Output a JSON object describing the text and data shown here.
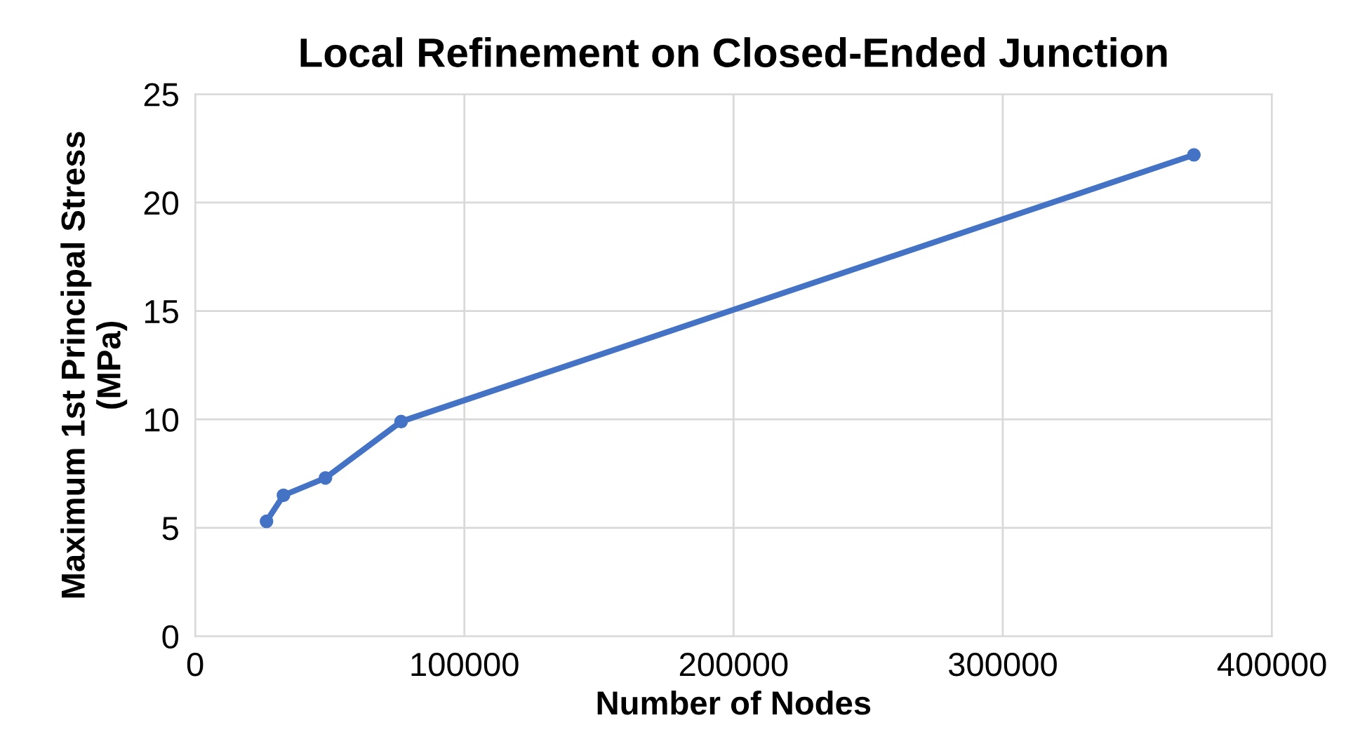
{
  "chart_data": {
    "type": "line",
    "title": "Local Refinement on Closed-Ended Junction",
    "xlabel": "Number of Nodes",
    "ylabel": "Maximum 1st Principal Stress\n(MPa)",
    "series": [
      {
        "color": "#4472c4",
        "x": [
          26500,
          32800,
          48400,
          76500,
          371000
        ],
        "values": [
          5.3,
          6.5,
          7.3,
          9.9,
          22.2
        ]
      }
    ],
    "xlim": [
      0,
      400000
    ],
    "xticks": [
      0,
      100000,
      200000,
      300000,
      400000
    ],
    "ylim": [
      0,
      25
    ],
    "yticks": [
      0,
      5,
      10,
      15,
      20,
      25
    ],
    "grid": true,
    "marker": "circle",
    "line_style": "solid"
  }
}
